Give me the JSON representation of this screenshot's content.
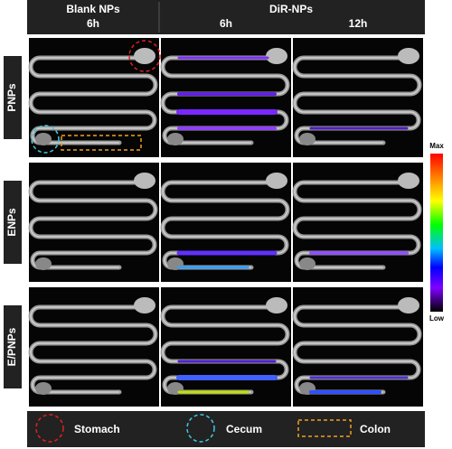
{
  "header": {
    "columns": [
      {
        "group": "Blank NPs",
        "time": "6h"
      },
      {
        "group": "DiR-NPs",
        "time": "6h"
      },
      {
        "time": "12h"
      }
    ]
  },
  "rows": [
    "PNPs",
    "ENPs",
    "E/PNPs"
  ],
  "colorbar": {
    "max": "Max",
    "min": "Low"
  },
  "legend": [
    "Stomach",
    "Cecum",
    "Colon"
  ]
}
